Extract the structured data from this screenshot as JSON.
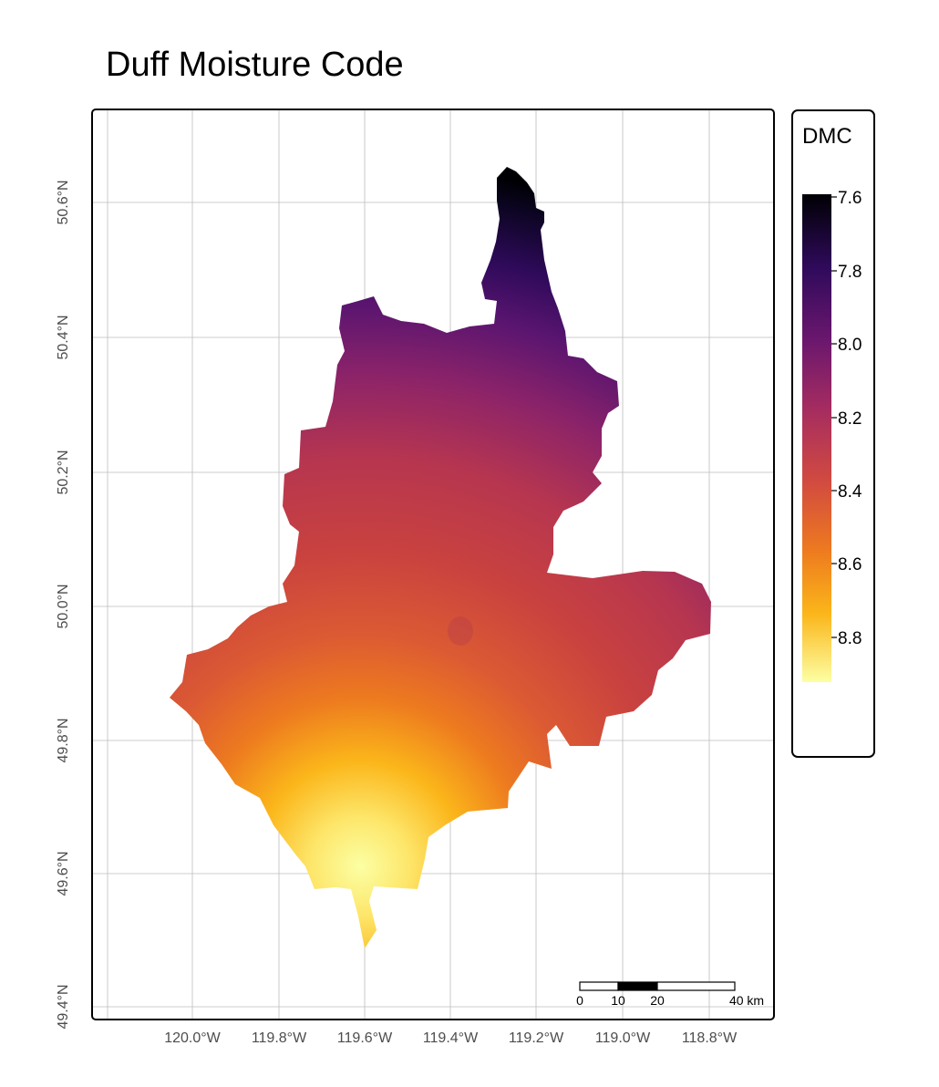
{
  "title": "Duff Moisture Code",
  "axes": {
    "x_ticks": [
      "120.0°W",
      "119.8°W",
      "119.6°W",
      "119.4°W",
      "119.2°W",
      "119.0°W",
      "118.8°W"
    ],
    "y_ticks": [
      "50.6°N",
      "50.4°N",
      "50.2°N",
      "50.0°N",
      "49.8°N",
      "49.6°N",
      "49.4°N"
    ]
  },
  "legend": {
    "title": "DMC",
    "labels": [
      "7.6",
      "7.8",
      "8.0",
      "8.2",
      "8.4",
      "8.6",
      "8.8"
    ],
    "palette": [
      "#000004",
      "#2f0a5b",
      "#6b176e",
      "#a52c60",
      "#d24b40",
      "#ed7a1f",
      "#fbb61a",
      "#fcffa4"
    ]
  },
  "scalebar": {
    "labels": [
      "0",
      "10",
      "20",
      "40 km"
    ]
  }
}
